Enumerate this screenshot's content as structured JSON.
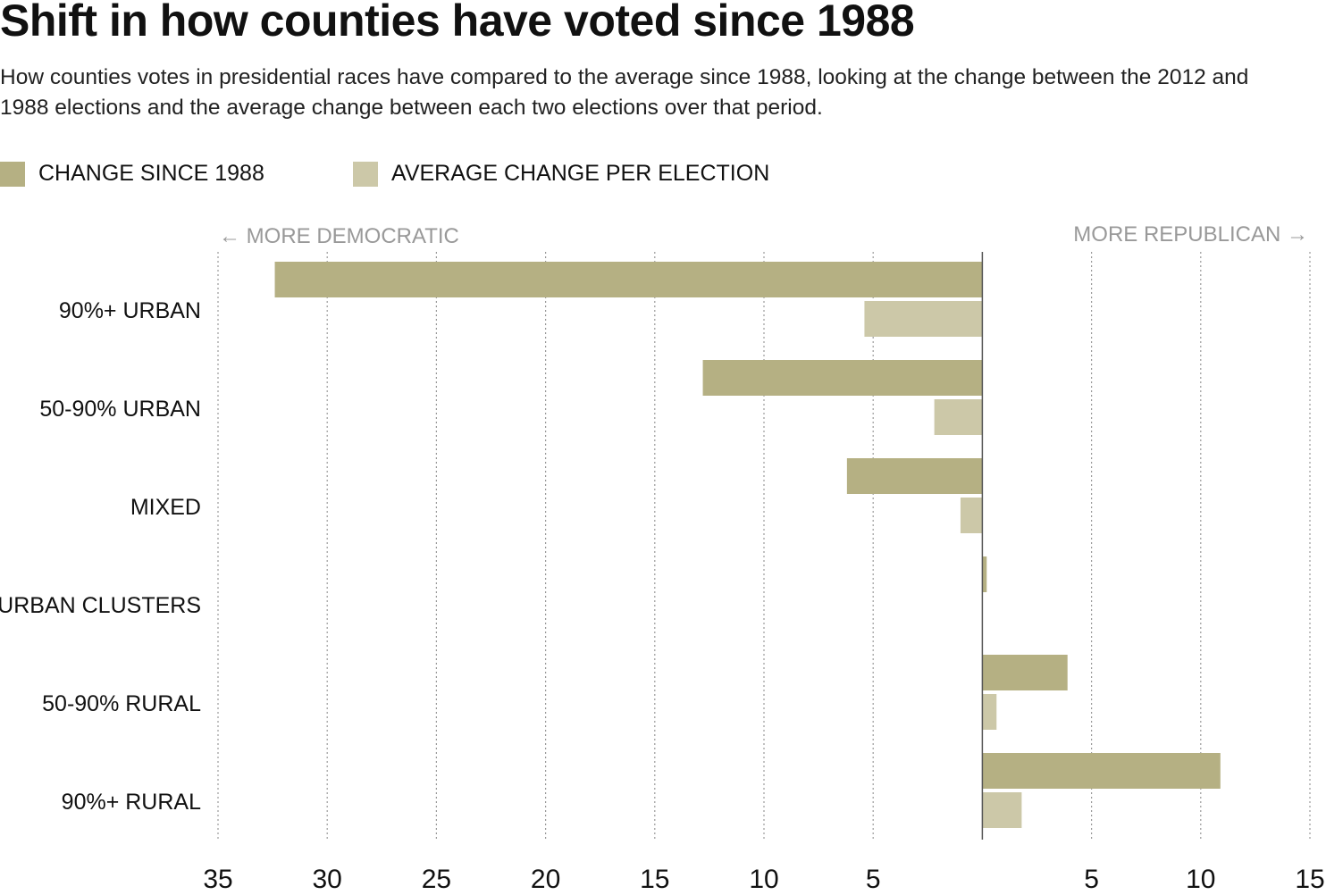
{
  "title": "Shift in how counties have voted since 1988",
  "subtitle": "How counties votes in presidential races have compared to the average since 1988, looking at the change between the 2012 and 1988 elections and the average change between each two elections over that period.",
  "colors": {
    "change": "#b5b083",
    "average": "#ccc8a8"
  },
  "chart_data": {
    "type": "bar",
    "orientation": "horizontal",
    "categories": [
      "90%+ URBAN",
      "50-90% URBAN",
      "MIXED",
      "URBAN CLUSTERS",
      "50-90% RURAL",
      "90%+ RURAL"
    ],
    "series": [
      {
        "name": "CHANGE SINCE 1988",
        "values": [
          -32.4,
          -12.8,
          -6.2,
          0.2,
          3.9,
          10.9
        ]
      },
      {
        "name": "AVERAGE CHANGE PER ELECTION",
        "values": [
          -5.4,
          -2.2,
          -1.0,
          0.0,
          0.65,
          1.8
        ]
      }
    ],
    "xlim": [
      -35,
      15
    ],
    "ticks": [
      -35,
      -30,
      -25,
      -20,
      -15,
      -10,
      -5,
      5,
      10,
      15
    ],
    "tick_labels": [
      "35",
      "30",
      "25",
      "20",
      "15",
      "10",
      "5",
      "5",
      "10",
      "15"
    ],
    "left_label": "← MORE DEMOCRATIC",
    "right_label": "MORE REPUBLICAN →",
    "grid": true,
    "legend": "top-left"
  }
}
